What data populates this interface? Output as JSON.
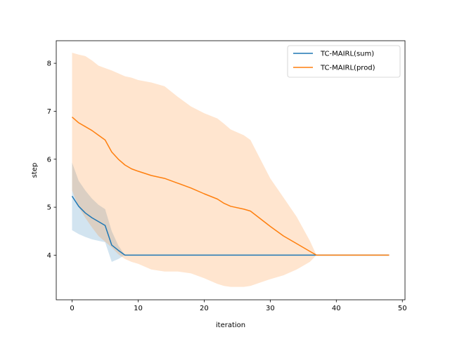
{
  "chart_data": {
    "type": "line",
    "title": "",
    "xlabel": "iteration",
    "ylabel": "step",
    "xlim": [
      -2.4,
      50.4
    ],
    "ylim": [
      3.07,
      8.47
    ],
    "xticks": [
      0,
      10,
      20,
      30,
      40,
      50
    ],
    "yticks": [
      4,
      5,
      6,
      7,
      8
    ],
    "grid": false,
    "legend_position": "upper right",
    "series": [
      {
        "name": "TC-MAIRL(sum)",
        "color": "#1f77b4",
        "x": [
          0,
          1,
          2,
          3,
          4,
          5,
          6,
          7,
          8,
          9,
          10,
          12,
          15,
          20,
          25,
          30,
          35,
          36,
          37,
          38,
          40,
          45,
          48
        ],
        "y": [
          5.23,
          5.02,
          4.88,
          4.78,
          4.7,
          4.62,
          4.21,
          4.1,
          4.0,
          4.0,
          4.0,
          4.0,
          4.0,
          4.0,
          4.0,
          4.0,
          4.0,
          4.0,
          4.0,
          4.0,
          4.0,
          4.0,
          4.0
        ],
        "lower": [
          4.52,
          4.44,
          4.38,
          4.33,
          4.3,
          4.27,
          3.86,
          3.92,
          4.0,
          4.0,
          4.0,
          4.0,
          4.0,
          4.0,
          4.0,
          4.0,
          4.0,
          4.0,
          4.0,
          4.0,
          4.0,
          4.0,
          4.0
        ],
        "upper": [
          5.93,
          5.55,
          5.35,
          5.18,
          5.05,
          4.96,
          4.5,
          4.2,
          4.0,
          4.0,
          4.0,
          4.0,
          4.0,
          4.0,
          4.0,
          4.0,
          4.0,
          4.0,
          4.0,
          4.0,
          4.0,
          4.0,
          4.0
        ]
      },
      {
        "name": "TC-MAIRL(prod)",
        "color": "#ff7f0e",
        "x": [
          0,
          1,
          2,
          3,
          4,
          5,
          6,
          7,
          8,
          9,
          10,
          12,
          14,
          16,
          18,
          20,
          22,
          23,
          24,
          26,
          27,
          30,
          32,
          34,
          36,
          37,
          40,
          45,
          48
        ],
        "y": [
          6.88,
          6.76,
          6.68,
          6.6,
          6.5,
          6.4,
          6.15,
          6.0,
          5.88,
          5.8,
          5.75,
          5.66,
          5.6,
          5.5,
          5.4,
          5.28,
          5.17,
          5.08,
          5.02,
          4.96,
          4.92,
          4.6,
          4.4,
          4.24,
          4.08,
          4.0,
          4.0,
          4.0,
          4.0
        ],
        "lower": [
          5.35,
          5.0,
          4.78,
          4.58,
          4.4,
          4.28,
          4.16,
          4.02,
          3.92,
          3.86,
          3.82,
          3.7,
          3.66,
          3.66,
          3.62,
          3.52,
          3.4,
          3.36,
          3.34,
          3.34,
          3.36,
          3.5,
          3.58,
          3.7,
          3.86,
          4.0,
          4.0,
          4.0,
          4.0
        ],
        "upper": [
          8.22,
          8.18,
          8.15,
          8.06,
          7.95,
          7.9,
          7.85,
          7.79,
          7.73,
          7.7,
          7.65,
          7.6,
          7.52,
          7.3,
          7.1,
          6.96,
          6.85,
          6.74,
          6.62,
          6.5,
          6.4,
          5.6,
          5.2,
          4.8,
          4.3,
          4.0,
          4.0,
          4.0,
          4.0
        ]
      }
    ]
  }
}
